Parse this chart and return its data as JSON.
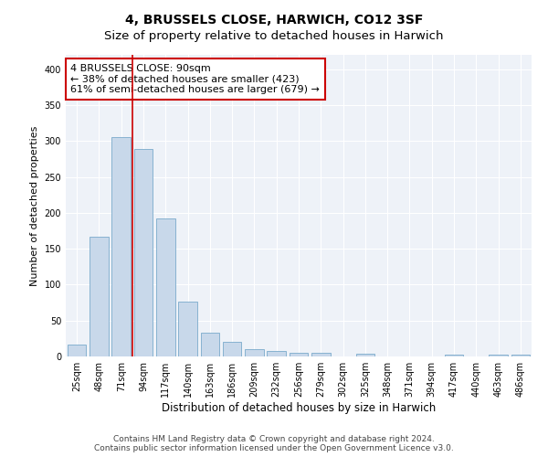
{
  "title": "4, BRUSSELS CLOSE, HARWICH, CO12 3SF",
  "subtitle": "Size of property relative to detached houses in Harwich",
  "xlabel": "Distribution of detached houses by size in Harwich",
  "ylabel": "Number of detached properties",
  "categories": [
    "25sqm",
    "48sqm",
    "71sqm",
    "94sqm",
    "117sqm",
    "140sqm",
    "163sqm",
    "186sqm",
    "209sqm",
    "232sqm",
    "256sqm",
    "279sqm",
    "302sqm",
    "325sqm",
    "348sqm",
    "371sqm",
    "394sqm",
    "417sqm",
    "440sqm",
    "463sqm",
    "486sqm"
  ],
  "values": [
    16,
    167,
    306,
    289,
    192,
    77,
    33,
    20,
    10,
    8,
    5,
    5,
    0,
    4,
    0,
    0,
    0,
    3,
    0,
    2,
    3
  ],
  "bar_color": "#c8d8ea",
  "bar_edge_color": "#7aaacb",
  "vline_color": "#cc0000",
  "annotation_text": "4 BRUSSELS CLOSE: 90sqm\n← 38% of detached houses are smaller (423)\n61% of semi-detached houses are larger (679) →",
  "annotation_box_color": "#ffffff",
  "annotation_box_edge": "#cc0000",
  "ylim": [
    0,
    420
  ],
  "yticks": [
    0,
    50,
    100,
    150,
    200,
    250,
    300,
    350,
    400
  ],
  "background_color": "#ffffff",
  "plot_bg_color": "#eef2f8",
  "footer": "Contains HM Land Registry data © Crown copyright and database right 2024.\nContains public sector information licensed under the Open Government Licence v3.0.",
  "title_fontsize": 10,
  "subtitle_fontsize": 9.5,
  "xlabel_fontsize": 8.5,
  "ylabel_fontsize": 8,
  "tick_fontsize": 7,
  "annotation_fontsize": 8,
  "footer_fontsize": 6.5
}
